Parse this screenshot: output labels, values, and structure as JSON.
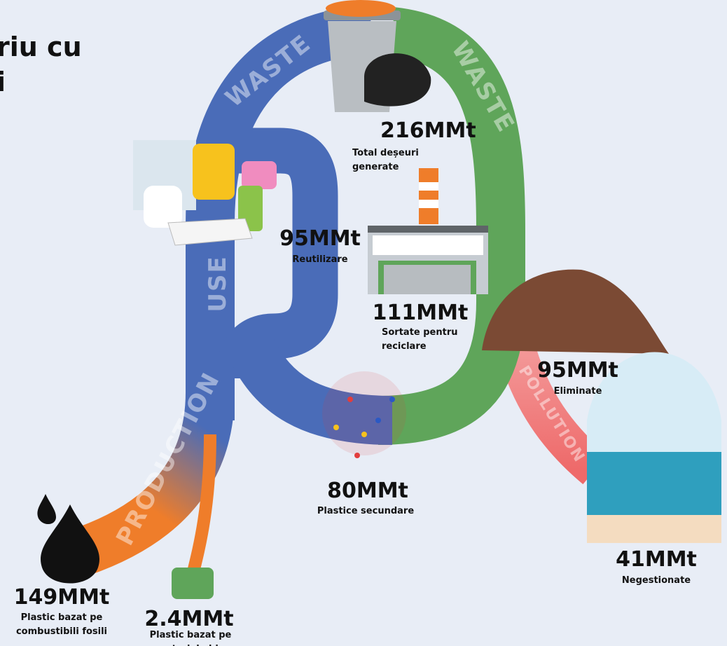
{
  "title": [
    "riu cu",
    "i"
  ],
  "flows": {
    "waste_left": "WASTE",
    "waste_right": "WASTE",
    "use": "USE",
    "production": "PRODUCTION",
    "pollution": "POLLUTION"
  },
  "nodes": [
    {
      "amount": "216MMt",
      "label": [
        "Total deșeuri",
        "generate"
      ]
    },
    {
      "amount": "95MMt",
      "label": [
        "Reutilizare"
      ]
    },
    {
      "amount": "111MMt",
      "label": [
        "Sortate pentru",
        "reciclare"
      ]
    },
    {
      "amount": "95MMt",
      "label": [
        "Eliminate"
      ]
    },
    {
      "amount": "80MMt",
      "label": [
        "Plastice secundare"
      ]
    },
    {
      "amount": "41MMt",
      "label": [
        "Negestionate"
      ]
    },
    {
      "amount": "149MMt",
      "label": [
        "Plastic bazat pe",
        "combustibili fosili"
      ]
    },
    {
      "amount": "2.4MMt",
      "label": [
        "Plastic bazat pe",
        "materiale bio"
      ]
    }
  ]
}
